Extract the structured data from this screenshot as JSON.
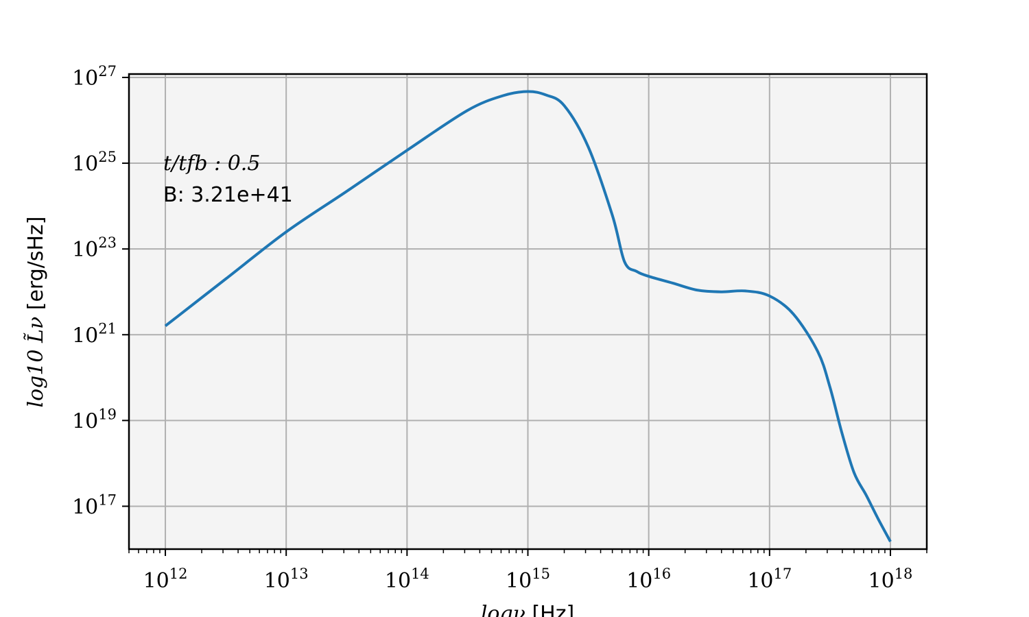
{
  "chart_data": {
    "type": "line",
    "xlabel": "logν [Hz]",
    "ylabel": "log10 L̃ν [erg/sHz]",
    "xlabel_parts": {
      "math": "logν",
      "unit": " [Hz]"
    },
    "ylabel_parts": {
      "math": "log10 L̃ν",
      "unit": " [erg/sHz]"
    },
    "x_scale": "log",
    "y_scale": "log",
    "xlim": [
      500000000000.0,
      2e+18
    ],
    "ylim": [
      1e+16,
      1.2e+27
    ],
    "grid": true,
    "plot_background": "#f4f4f4",
    "grid_color": "#b0b0b0",
    "x_ticks": [
      {
        "base": "10",
        "exp": "12",
        "value": 1000000000000.0
      },
      {
        "base": "10",
        "exp": "13",
        "value": 10000000000000.0
      },
      {
        "base": "10",
        "exp": "14",
        "value": 100000000000000.0
      },
      {
        "base": "10",
        "exp": "15",
        "value": 1000000000000000.0
      },
      {
        "base": "10",
        "exp": "16",
        "value": 1e+16
      },
      {
        "base": "10",
        "exp": "17",
        "value": 1e+17
      },
      {
        "base": "10",
        "exp": "18",
        "value": 1e+18
      }
    ],
    "y_ticks": [
      {
        "base": "10",
        "exp": "17",
        "value": 1e+17
      },
      {
        "base": "10",
        "exp": "19",
        "value": 1e+19
      },
      {
        "base": "10",
        "exp": "21",
        "value": 1e+21
      },
      {
        "base": "10",
        "exp": "23",
        "value": 1e+23
      },
      {
        "base": "10",
        "exp": "25",
        "value": 1e+25
      },
      {
        "base": "10",
        "exp": "27",
        "value": 1e+27
      }
    ],
    "annotations": {
      "time_label": "t/tfb : 0.5",
      "b_label": "B: 3.21e+41"
    },
    "series": [
      {
        "color": "#1f77b4",
        "x": [
          1000000000000.0,
          3160000000000.0,
          10000000000000.0,
          31600000000000.0,
          100000000000000.0,
          316000000000000.0,
          631000000000000.0,
          1000000000000000.0,
          1410000000000000.0,
          2000000000000000.0,
          3160000000000000.0,
          5010000000000000.0,
          6310000000000000.0,
          7940000000000000.0,
          1e+16,
          1.58e+16,
          2.51e+16,
          3.98e+16,
          6.31e+16,
          1e+17,
          1.58e+17,
          2.51e+17,
          3.16e+17,
          3.98e+17,
          5.01e+17,
          6.31e+17,
          7.94e+17,
          1e+18
        ],
        "y": [
          1.6e+21,
          2e+22,
          2.5e+23,
          2.2e+24,
          2e+25,
          1.7e+26,
          3.8e+26,
          4.7e+26,
          3.9e+26,
          2.2e+26,
          2.4e+25,
          6e+23,
          5e+22,
          3e+22,
          2.3e+22,
          1.6e+22,
          1.1e+22,
          1e+22,
          1.05e+22,
          8e+21,
          3e+21,
          4e+20,
          6e+19,
          5e+18,
          6e+17,
          1.8e+17,
          5e+16,
          1.5e+16
        ]
      }
    ]
  }
}
